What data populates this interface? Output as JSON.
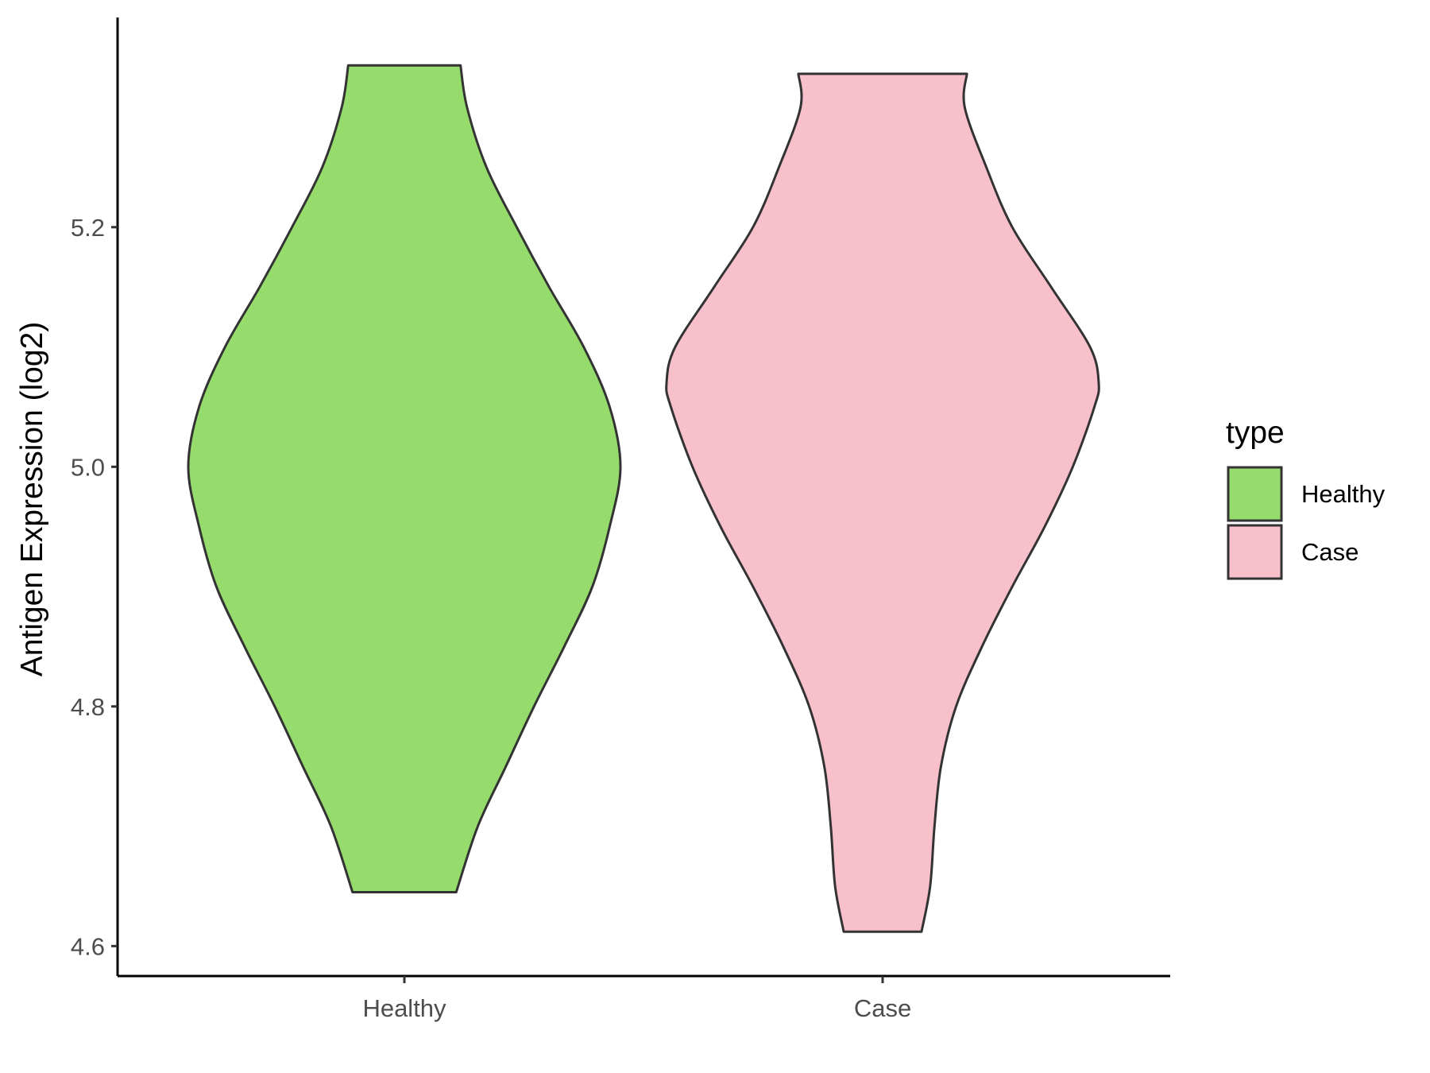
{
  "chart_data": {
    "type": "violin",
    "title": "",
    "xlabel": "",
    "ylabel": "Antigen Expression (log2)",
    "ylim": [
      4.575,
      5.375
    ],
    "y_ticks": [
      "4.6",
      "4.8",
      "5.0",
      "5.2"
    ],
    "categories": [
      "Healthy",
      "Case"
    ],
    "grid": false,
    "legend": {
      "title": "type",
      "position": "right",
      "entries": [
        {
          "label": "Healthy",
          "color": "#95dc6c"
        },
        {
          "label": "Case",
          "color": "#f7c0cb"
        }
      ]
    },
    "series": [
      {
        "category": "Healthy",
        "color": "#95dc6c",
        "min": 4.645,
        "max": 5.335,
        "density_profile": [
          [
            4.645,
            0.24
          ],
          [
            4.7,
            0.34
          ],
          [
            4.75,
            0.47
          ],
          [
            4.8,
            0.6
          ],
          [
            4.85,
            0.74
          ],
          [
            4.9,
            0.87
          ],
          [
            4.95,
            0.95
          ],
          [
            5.0,
            1.0
          ],
          [
            5.05,
            0.95
          ],
          [
            5.1,
            0.83
          ],
          [
            5.15,
            0.67
          ],
          [
            5.2,
            0.52
          ],
          [
            5.25,
            0.38
          ],
          [
            5.3,
            0.29
          ],
          [
            5.335,
            0.26
          ]
        ]
      },
      {
        "category": "Case",
        "color": "#f7c0cb",
        "min": 4.612,
        "max": 5.328,
        "density_profile": [
          [
            4.612,
            0.18
          ],
          [
            4.65,
            0.22
          ],
          [
            4.7,
            0.24
          ],
          [
            4.75,
            0.27
          ],
          [
            4.8,
            0.34
          ],
          [
            4.85,
            0.46
          ],
          [
            4.9,
            0.6
          ],
          [
            4.95,
            0.75
          ],
          [
            5.0,
            0.88
          ],
          [
            5.05,
            0.98
          ],
          [
            5.07,
            1.0
          ],
          [
            5.1,
            0.96
          ],
          [
            5.15,
            0.78
          ],
          [
            5.2,
            0.6
          ],
          [
            5.25,
            0.48
          ],
          [
            5.3,
            0.38
          ],
          [
            5.328,
            0.39
          ]
        ]
      }
    ]
  }
}
